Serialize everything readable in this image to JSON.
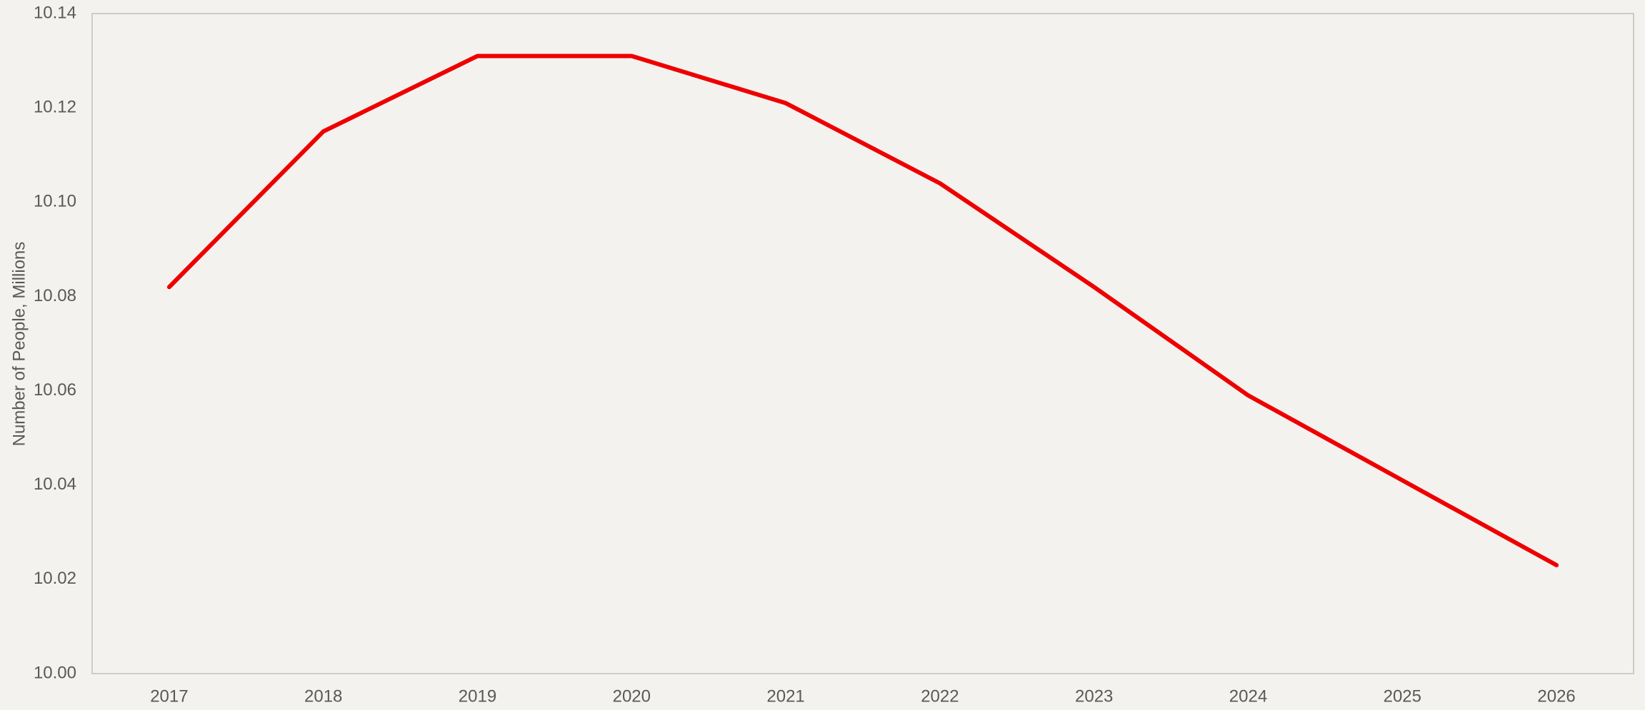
{
  "chart_data": {
    "type": "line",
    "y_label": "Number of People, Millions",
    "categories": [
      "2017",
      "2018",
      "2019",
      "2020",
      "2021",
      "2022",
      "2023",
      "2024",
      "2025",
      "2026"
    ],
    "values": [
      10.082,
      10.115,
      10.131,
      10.131,
      10.121,
      10.104,
      10.082,
      10.059,
      10.041,
      10.023
    ],
    "color": "#ee0000",
    "ylim": [
      10.0,
      10.14
    ],
    "yticks": [
      {
        "value": 10.0,
        "label": "10.00"
      },
      {
        "value": 10.02,
        "label": "10.02"
      },
      {
        "value": 10.04,
        "label": "10.04"
      },
      {
        "value": 10.06,
        "label": "10.06"
      },
      {
        "value": 10.08,
        "label": "10.08"
      },
      {
        "value": 10.1,
        "label": "10.10"
      },
      {
        "value": 10.12,
        "label": "10.12"
      },
      {
        "value": 10.14,
        "label": "10.14"
      }
    ],
    "grid": false
  }
}
